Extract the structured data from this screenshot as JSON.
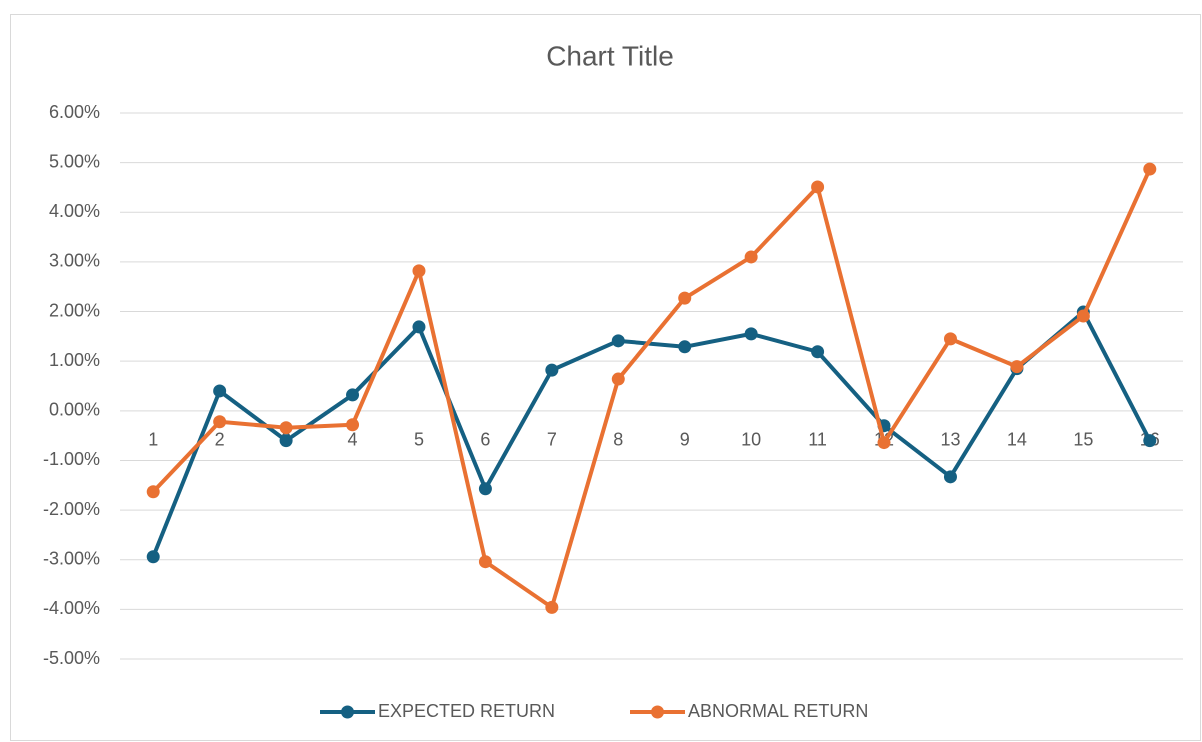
{
  "chart_data": {
    "type": "line",
    "title": "Chart Title",
    "categories": [
      "1",
      "2",
      "3",
      "4",
      "5",
      "6",
      "7",
      "8",
      "9",
      "10",
      "11",
      "12",
      "13",
      "14",
      "15",
      "16"
    ],
    "series": [
      {
        "name": "EXPECTED RETURN",
        "color": "#156082",
        "values": [
          -2.94,
          0.4,
          -0.6,
          0.32,
          1.69,
          -1.57,
          0.82,
          1.41,
          1.29,
          1.55,
          1.19,
          -0.3,
          -1.33,
          0.85,
          1.99,
          -0.6
        ]
      },
      {
        "name": "ABNORMAL RETURN",
        "color": "#e97132",
        "values": [
          -1.63,
          -0.22,
          -0.34,
          -0.28,
          2.82,
          -3.04,
          -3.96,
          0.64,
          2.27,
          3.1,
          4.51,
          -0.64,
          1.45,
          0.89,
          1.91,
          4.87
        ]
      }
    ],
    "ylim": [
      -5,
      6
    ],
    "yticks": [
      {
        "value": -5,
        "label": "-5.00%"
      },
      {
        "value": -4,
        "label": "-4.00%"
      },
      {
        "value": -3,
        "label": "-3.00%"
      },
      {
        "value": -2,
        "label": "-2.00%"
      },
      {
        "value": -1,
        "label": "-1.00%"
      },
      {
        "value": 0,
        "label": "0.00%"
      },
      {
        "value": 1,
        "label": "1.00%"
      },
      {
        "value": 2,
        "label": "2.00%"
      },
      {
        "value": 3,
        "label": "3.00%"
      },
      {
        "value": 4,
        "label": "4.00%"
      },
      {
        "value": 5,
        "label": "5.00%"
      },
      {
        "value": 6,
        "label": "6.00%"
      }
    ],
    "grid": true,
    "legend": "bottom"
  }
}
